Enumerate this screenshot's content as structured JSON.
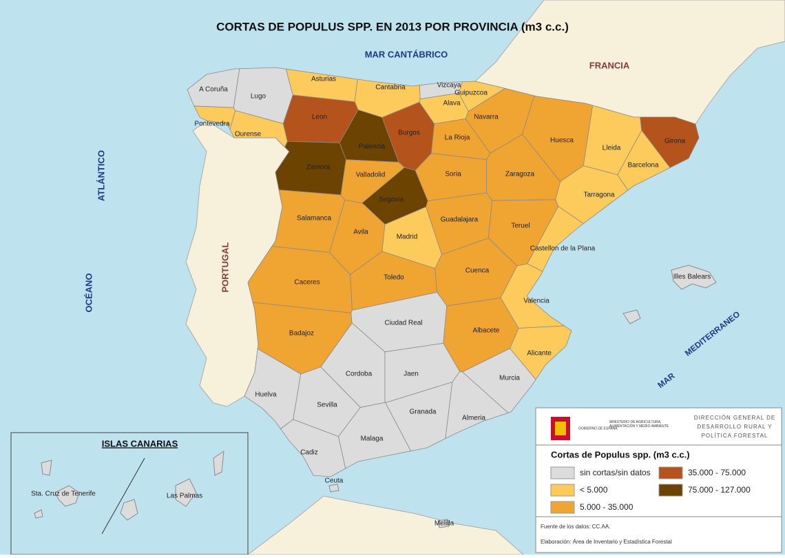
{
  "title": "CORTAS DE POPULUS SPP. EN 2013 POR PROVINCIA (m3 c.c.)",
  "places": {
    "cantabrico": "MAR   CANTÁBRICO",
    "francia": "FRANCIA",
    "portugal": "PORTUGAL",
    "oceano": "OCÉANO",
    "atlantico": "ATLÁNTICO",
    "mar": "MAR",
    "mediterraneo": "MEDITERRANEO"
  },
  "provinces": [
    {
      "name": "A Coruña",
      "class": 0
    },
    {
      "name": "Lugo",
      "class": 0
    },
    {
      "name": "Pontevedra",
      "class": 1
    },
    {
      "name": "Ourense",
      "class": 1
    },
    {
      "name": "Asturias",
      "class": 1
    },
    {
      "name": "Cantabria",
      "class": 1
    },
    {
      "name": "Vizcaya",
      "class": 0
    },
    {
      "name": "Guipuzcoa",
      "class": 1
    },
    {
      "name": "Alava",
      "class": 1
    },
    {
      "name": "Navarra",
      "class": 2
    },
    {
      "name": "Leon",
      "class": 3
    },
    {
      "name": "Palencia",
      "class": 4
    },
    {
      "name": "Burgos",
      "class": 3
    },
    {
      "name": "La Rioja",
      "class": 2
    },
    {
      "name": "Zamora",
      "class": 4
    },
    {
      "name": "Valladolid",
      "class": 2
    },
    {
      "name": "Soria",
      "class": 2
    },
    {
      "name": "Huesca",
      "class": 2
    },
    {
      "name": "Lleida",
      "class": 1
    },
    {
      "name": "Girona",
      "class": 3
    },
    {
      "name": "Barcelona",
      "class": 1
    },
    {
      "name": "Zaragoza",
      "class": 2
    },
    {
      "name": "Tarragona",
      "class": 1
    },
    {
      "name": "Salamanca",
      "class": 2
    },
    {
      "name": "Segovia",
      "class": 4
    },
    {
      "name": "Avila",
      "class": 2
    },
    {
      "name": "Madrid",
      "class": 1
    },
    {
      "name": "Guadalajara",
      "class": 2
    },
    {
      "name": "Teruel",
      "class": 2
    },
    {
      "name": "Castellon de la Plana",
      "class": 1
    },
    {
      "name": "Caceres",
      "class": 2
    },
    {
      "name": "Toledo",
      "class": 2
    },
    {
      "name": "Cuenca",
      "class": 2
    },
    {
      "name": "Valencia",
      "class": 1
    },
    {
      "name": "Badajoz",
      "class": 2
    },
    {
      "name": "Ciudad Real",
      "class": 0
    },
    {
      "name": "Albacete",
      "class": 2
    },
    {
      "name": "Alicante",
      "class": 1
    },
    {
      "name": "Huelva",
      "class": 0
    },
    {
      "name": "Cordoba",
      "class": 0
    },
    {
      "name": "Jaen",
      "class": 0
    },
    {
      "name": "Murcia",
      "class": 0
    },
    {
      "name": "Sevilla",
      "class": 0
    },
    {
      "name": "Granada",
      "class": 0
    },
    {
      "name": "Almeria",
      "class": 0
    },
    {
      "name": "Cadiz",
      "class": 0
    },
    {
      "name": "Malaga",
      "class": 0
    }
  ],
  "islands": [
    {
      "name": "Illes Balears",
      "class": 0
    },
    {
      "name": "Ceuta",
      "class": 0
    },
    {
      "name": "Melilla",
      "class": 0
    }
  ],
  "canarias": {
    "title": "ISLAS CANARIAS",
    "provinces": [
      {
        "name": "Sta. Cruz de Tenerife",
        "class": 0
      },
      {
        "name": "Las Palmas",
        "class": 0
      }
    ]
  },
  "institution": {
    "gobierno": "GOBIERNO DE ESPAÑA",
    "ministerio": "MINISTERIO DE AGRICULTURA, ALIMENTACIÓN Y MEDIO AMBIENTE",
    "direccion": [
      "DIRECCIÓN GENERAL DE",
      "DESARROLLO RURAL Y",
      "POLÍTICA FORESTAL"
    ]
  },
  "legend": {
    "title": "Cortas de Populus spp. (m3 c.c.)",
    "classes": [
      {
        "label": "sin cortas/sin datos",
        "color": "#dcdcdc"
      },
      {
        "label": "< 5.000",
        "color": "#fccb5b"
      },
      {
        "label": "5.000 - 35.000",
        "color": "#f0a431"
      },
      {
        "label": "35.000 - 75.000",
        "color": "#b4531b"
      },
      {
        "label": "75.000 - 127.000",
        "color": "#6c4300"
      }
    ]
  },
  "source": "Fuente de los datos: CC.AA.",
  "author": "Elaboración: Área de Inventario y Estadística Forestal"
}
